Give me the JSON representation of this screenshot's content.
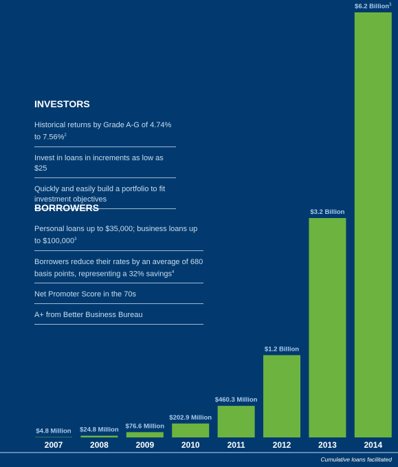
{
  "chart_data": {
    "type": "bar",
    "categories": [
      "2007",
      "2008",
      "2009",
      "2010",
      "2011",
      "2012",
      "2013",
      "2014"
    ],
    "values": [
      4.8,
      24.8,
      76.6,
      202.9,
      460.3,
      1200,
      3200,
      6200
    ],
    "value_labels": [
      "$4.8 Million",
      "$24.8 Million",
      "$76.6 Million",
      "$202.9 Million",
      "$460.3 Million",
      "$1.2 Billion",
      "$3.2 Billion",
      "$6.2 Billion"
    ],
    "value_notes": [
      null,
      null,
      null,
      null,
      null,
      null,
      null,
      "1"
    ],
    "color": "#6cb43f",
    "ylim": [
      0,
      6200
    ],
    "caption": "Cumulative loans facilitated"
  },
  "investors": {
    "heading": "INVESTORS",
    "items": [
      {
        "text": "Historical returns by Grade A-G of 4.74% to 7.56%",
        "note": "2"
      },
      {
        "text": "Invest in loans in increments as low as $25"
      },
      {
        "text": "Quickly and easily build a portfolio to fit investment objectives"
      }
    ]
  },
  "borrowers": {
    "heading": "BORROWERS",
    "items": [
      {
        "text": "Personal loans up to $35,000; business loans up to $100,000",
        "note": "3"
      },
      {
        "text": "Borrowers reduce their rates by an average of 680 basis points, representing a 32% savings",
        "note": "4"
      },
      {
        "text": "Net Promoter Score in the 70s"
      },
      {
        "text": "A+ from Better Business Bureau"
      }
    ]
  }
}
